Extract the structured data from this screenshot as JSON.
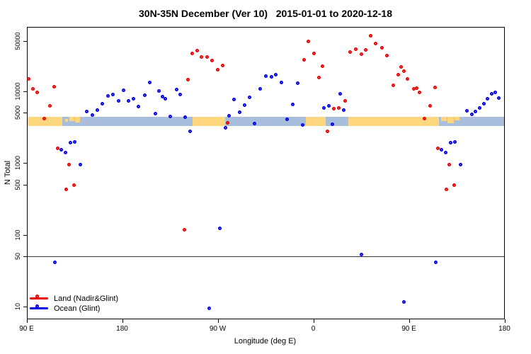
{
  "chart_data": {
    "type": "scatter",
    "title": "30N-35N December (Ver 10)   2015-01-01 to 2020-12-18",
    "xlabel": "Longitude (deg E)",
    "ylabel": "N Total",
    "x_axis": {
      "range_deg_along_axis": [
        90,
        540
      ],
      "ticks": [
        90,
        180,
        270,
        360,
        450,
        540
      ],
      "tick_labels": [
        "90 E",
        "180",
        "90 W",
        "0",
        "90 E",
        "180"
      ]
    },
    "y_axis": {
      "scale": "log10",
      "ticks": [
        10,
        50,
        100,
        500,
        1000,
        5000,
        10000,
        50000
      ],
      "tick_labels": [
        "10",
        "50",
        "100",
        "500",
        "1000",
        "5000",
        "10000",
        "50000"
      ]
    },
    "reference_line_y": 50,
    "colors": {
      "land": "#f00000",
      "ocean": "#0000ee",
      "strip_land": "#ffd77e",
      "strip_ocean": "#a8bedc"
    },
    "legend": [
      {
        "label": "Land (Nadir&Glint)",
        "color": "#f00000"
      },
      {
        "label": "Ocean (Glint)",
        "color": "#0000ee"
      }
    ],
    "map_strip": {
      "n_value_top": 4400,
      "n_value_bottom": 3270,
      "segments": [
        {
          "type": "land",
          "from": 90,
          "to": 123.7
        },
        {
          "type": "ocean",
          "from": 123.7,
          "to": 246.3
        },
        {
          "type": "land",
          "from": 246.3,
          "to": 277
        },
        {
          "type": "ocean",
          "from": 277,
          "to": 353
        },
        {
          "type": "land",
          "from": 353,
          "to": 371.7
        },
        {
          "type": "ocean",
          "from": 371.7,
          "to": 393
        },
        {
          "type": "land",
          "from": 393,
          "to": 478.3
        },
        {
          "type": "ocean",
          "from": 478.3,
          "to": 540
        }
      ],
      "islands": [
        {
          "from": 126.3,
          "to": 129,
          "inset": 3,
          "h": 4
        },
        {
          "from": 130.3,
          "to": 135,
          "inset": 0,
          "h": 6
        },
        {
          "from": 135.7,
          "to": 140.3,
          "inset": 0,
          "h": 8
        },
        {
          "from": 480.3,
          "to": 485.7,
          "inset": 0,
          "h": 6
        },
        {
          "from": 486.3,
          "to": 492.3,
          "inset": 0,
          "h": 9
        },
        {
          "from": 493,
          "to": 497.7,
          "inset": 0,
          "h": 5
        }
      ]
    },
    "series": [
      {
        "name": "Land (Nadir&Glint)",
        "color": "#f00000",
        "points": [
          [
            93.7,
            14000
          ],
          [
            97.7,
            10200
          ],
          [
            101.7,
            9100
          ],
          [
            108.3,
            3900
          ],
          [
            113.7,
            5900
          ],
          [
            117.7,
            10900
          ],
          [
            121,
            1510
          ],
          [
            129,
            405
          ],
          [
            131.7,
            900
          ],
          [
            136.3,
            465
          ],
          [
            240.3,
            111
          ],
          [
            243.7,
            13700
          ],
          [
            247.7,
            31700
          ],
          [
            252.3,
            34700
          ],
          [
            256.3,
            28300
          ],
          [
            261.7,
            28300
          ],
          [
            266.3,
            25300
          ],
          [
            271.7,
            18800
          ],
          [
            276.3,
            21500
          ],
          [
            281,
            3430
          ],
          [
            353,
            25900
          ],
          [
            357,
            46500
          ],
          [
            362.3,
            31700
          ],
          [
            367,
            14650
          ],
          [
            370.3,
            21000
          ],
          [
            375,
            2600
          ],
          [
            381,
            5390
          ],
          [
            385.7,
            5500
          ],
          [
            391.7,
            6920
          ],
          [
            396.3,
            33200
          ],
          [
            401.7,
            36300
          ],
          [
            407,
            31000
          ],
          [
            411,
            35500
          ],
          [
            415.7,
            55800
          ],
          [
            420.3,
            43500
          ],
          [
            426.3,
            38000
          ],
          [
            431,
            29600
          ],
          [
            437,
            11400
          ],
          [
            441.7,
            16000
          ],
          [
            444.3,
            20600
          ],
          [
            447,
            17900
          ],
          [
            450.3,
            14000
          ],
          [
            456.3,
            10200
          ],
          [
            459,
            10400
          ],
          [
            461.7,
            9000
          ],
          [
            466.3,
            3900
          ],
          [
            471.7,
            5900
          ],
          [
            476.3,
            10600
          ],
          [
            479,
            1510
          ],
          [
            487,
            405
          ],
          [
            489.7,
            900
          ],
          [
            494.3,
            465
          ]
        ]
      },
      {
        "name": "Ocean (Glint)",
        "color": "#0000ee",
        "points": [
          [
            118.3,
            39
          ],
          [
            124.3,
            1440
          ],
          [
            128.3,
            1310
          ],
          [
            133,
            1810
          ],
          [
            137,
            1850
          ],
          [
            142.3,
            900
          ],
          [
            148.3,
            4920
          ],
          [
            153.7,
            4400
          ],
          [
            158.3,
            5150
          ],
          [
            163,
            6310
          ],
          [
            168.3,
            8110
          ],
          [
            173,
            8490
          ],
          [
            178.3,
            6920
          ],
          [
            183,
            9730
          ],
          [
            187.7,
            6840
          ],
          [
            192.3,
            7330
          ],
          [
            197,
            5710
          ],
          [
            203,
            8300
          ],
          [
            207.7,
            12400
          ],
          [
            213,
            4620
          ],
          [
            216.3,
            9500
          ],
          [
            219.7,
            7900
          ],
          [
            222.3,
            7330
          ],
          [
            227,
            4210
          ],
          [
            233,
            10000
          ],
          [
            236.3,
            8490
          ],
          [
            241,
            4120
          ],
          [
            245.7,
            2610
          ],
          [
            263.7,
            9
          ],
          [
            273.7,
            116
          ],
          [
            279,
            2930
          ],
          [
            282.3,
            4300
          ],
          [
            287,
            7170
          ],
          [
            292.3,
            4830
          ],
          [
            297,
            6080
          ],
          [
            301.7,
            7670
          ],
          [
            306.3,
            3350
          ],
          [
            311.7,
            10200
          ],
          [
            317,
            15400
          ],
          [
            322.3,
            15000
          ],
          [
            326.3,
            16000
          ],
          [
            331.7,
            12400
          ],
          [
            337,
            3840
          ],
          [
            342.3,
            6160
          ],
          [
            347,
            12100
          ],
          [
            351.7,
            3160
          ],
          [
            371.7,
            5500
          ],
          [
            376.3,
            5900
          ],
          [
            379.7,
            3280
          ],
          [
            387,
            8700
          ],
          [
            390.3,
            5120
          ],
          [
            407,
            50
          ],
          [
            447,
            11
          ],
          [
            477,
            39
          ],
          [
            482.3,
            1440
          ],
          [
            486.3,
            1310
          ],
          [
            491,
            1810
          ],
          [
            495,
            1850
          ],
          [
            500.3,
            900
          ],
          [
            506.3,
            5040
          ],
          [
            511,
            4510
          ],
          [
            514.3,
            4920
          ],
          [
            518.3,
            5500
          ],
          [
            522.3,
            6310
          ],
          [
            525.7,
            7330
          ],
          [
            529.7,
            8700
          ],
          [
            533,
            9100
          ],
          [
            536.3,
            7500
          ]
        ]
      }
    ]
  }
}
